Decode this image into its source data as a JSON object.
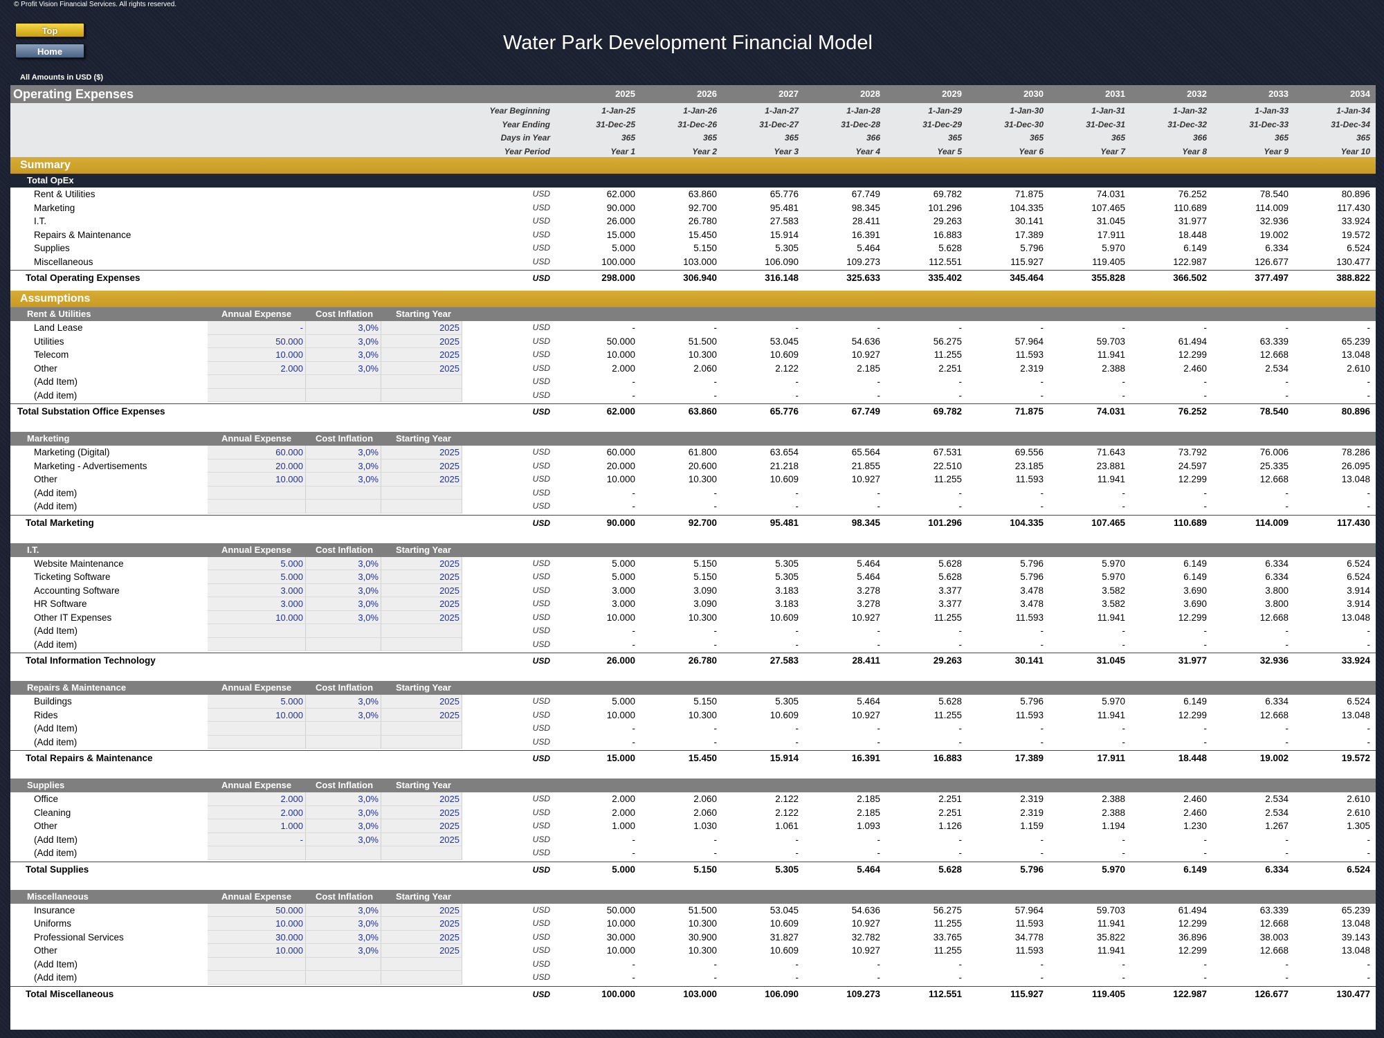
{
  "header": {
    "copyright": "© Profit Vision Financial Services. All rights reserved.",
    "top_button": "Top",
    "home_button": "Home",
    "title": "Water Park Development Financial Model",
    "amounts_note": "All Amounts in  USD ($)"
  },
  "table": {
    "title": "Operating Expenses",
    "years": [
      "2025",
      "2026",
      "2027",
      "2028",
      "2029",
      "2030",
      "2031",
      "2032",
      "2033",
      "2034"
    ],
    "meta": [
      {
        "label": "Year Beginning",
        "values": [
          "1-Jan-25",
          "1-Jan-26",
          "1-Jan-27",
          "1-Jan-28",
          "1-Jan-29",
          "1-Jan-30",
          "1-Jan-31",
          "1-Jan-32",
          "1-Jan-33",
          "1-Jan-34"
        ]
      },
      {
        "label": "Year Ending",
        "values": [
          "31-Dec-25",
          "31-Dec-26",
          "31-Dec-27",
          "31-Dec-28",
          "31-Dec-29",
          "31-Dec-30",
          "31-Dec-31",
          "31-Dec-32",
          "31-Dec-33",
          "31-Dec-34"
        ]
      },
      {
        "label": "Days in Year",
        "values": [
          "365",
          "365",
          "365",
          "366",
          "365",
          "365",
          "365",
          "366",
          "365",
          "365"
        ]
      },
      {
        "label": "Year Period",
        "values": [
          "Year 1",
          "Year 2",
          "Year 3",
          "Year 4",
          "Year 5",
          "Year 6",
          "Year 7",
          "Year 8",
          "Year 9",
          "Year 10"
        ]
      }
    ],
    "unit": "USD",
    "input_headers": [
      "Annual Expense",
      "Cost Inflation",
      "Starting Year"
    ]
  },
  "summary": {
    "section_title": "Summary",
    "subheader": "Total OpEx",
    "rows": [
      {
        "label": "Rent & Utilities",
        "values": [
          "62.000",
          "63.860",
          "65.776",
          "67.749",
          "69.782",
          "71.875",
          "74.031",
          "76.252",
          "78.540",
          "80.896"
        ]
      },
      {
        "label": "Marketing",
        "values": [
          "90.000",
          "92.700",
          "95.481",
          "98.345",
          "101.296",
          "104.335",
          "107.465",
          "110.689",
          "114.009",
          "117.430"
        ]
      },
      {
        "label": "I.T.",
        "values": [
          "26.000",
          "26.780",
          "27.583",
          "28.411",
          "29.263",
          "30.141",
          "31.045",
          "31.977",
          "32.936",
          "33.924"
        ]
      },
      {
        "label": "Repairs & Maintenance",
        "values": [
          "15.000",
          "15.450",
          "15.914",
          "16.391",
          "16.883",
          "17.389",
          "17.911",
          "18.448",
          "19.002",
          "19.572"
        ]
      },
      {
        "label": "Supplies",
        "values": [
          "5.000",
          "5.150",
          "5.305",
          "5.464",
          "5.628",
          "5.796",
          "5.970",
          "6.149",
          "6.334",
          "6.524"
        ]
      },
      {
        "label": "Miscellaneous",
        "values": [
          "100.000",
          "103.000",
          "106.090",
          "109.273",
          "112.551",
          "115.927",
          "119.405",
          "122.987",
          "126.677",
          "130.477"
        ]
      }
    ],
    "total": {
      "label": "Total Operating Expenses",
      "values": [
        "298.000",
        "306.940",
        "316.148",
        "325.633",
        "335.402",
        "345.464",
        "355.828",
        "366.502",
        "377.497",
        "388.822"
      ]
    }
  },
  "assumptions_title": "Assumptions",
  "groups": [
    {
      "title": "Rent & Utilities",
      "rows": [
        {
          "label": "Land Lease",
          "annual": "-",
          "inflation": "3,0%",
          "start": "2025",
          "values": [
            "-",
            "-",
            "-",
            "-",
            "-",
            "-",
            "-",
            "-",
            "-",
            "-"
          ]
        },
        {
          "label": "Utilities",
          "annual": "50.000",
          "inflation": "3,0%",
          "start": "2025",
          "values": [
            "50.000",
            "51.500",
            "53.045",
            "54.636",
            "56.275",
            "57.964",
            "59.703",
            "61.494",
            "63.339",
            "65.239"
          ]
        },
        {
          "label": "Telecom",
          "annual": "10.000",
          "inflation": "3,0%",
          "start": "2025",
          "values": [
            "10.000",
            "10.300",
            "10.609",
            "10.927",
            "11.255",
            "11.593",
            "11.941",
            "12.299",
            "12.668",
            "13.048"
          ]
        },
        {
          "label": "Other",
          "annual": "2.000",
          "inflation": "3,0%",
          "start": "2025",
          "values": [
            "2.000",
            "2.060",
            "2.122",
            "2.185",
            "2.251",
            "2.319",
            "2.388",
            "2.460",
            "2.534",
            "2.610"
          ]
        },
        {
          "label": "(Add Item)",
          "annual": "",
          "inflation": "",
          "start": "",
          "values": [
            "-",
            "-",
            "-",
            "-",
            "-",
            "-",
            "-",
            "-",
            "-",
            "-"
          ]
        },
        {
          "label": "(Add item)",
          "annual": "",
          "inflation": "",
          "start": "",
          "values": [
            "-",
            "-",
            "-",
            "-",
            "-",
            "-",
            "-",
            "-",
            "-",
            "-"
          ]
        }
      ],
      "total": {
        "label": "Total Substation Office Expenses",
        "values": [
          "62.000",
          "63.860",
          "65.776",
          "67.749",
          "69.782",
          "71.875",
          "74.031",
          "76.252",
          "78.540",
          "80.896"
        ]
      }
    },
    {
      "title": "Marketing",
      "rows": [
        {
          "label": "Marketing (Digital)",
          "annual": "60.000",
          "inflation": "3,0%",
          "start": "2025",
          "values": [
            "60.000",
            "61.800",
            "63.654",
            "65.564",
            "67.531",
            "69.556",
            "71.643",
            "73.792",
            "76.006",
            "78.286"
          ]
        },
        {
          "label": "Marketing - Advertisements",
          "annual": "20.000",
          "inflation": "3,0%",
          "start": "2025",
          "values": [
            "20.000",
            "20.600",
            "21.218",
            "21.855",
            "22.510",
            "23.185",
            "23.881",
            "24.597",
            "25.335",
            "26.095"
          ]
        },
        {
          "label": "Other",
          "annual": "10.000",
          "inflation": "3,0%",
          "start": "2025",
          "values": [
            "10.000",
            "10.300",
            "10.609",
            "10.927",
            "11.255",
            "11.593",
            "11.941",
            "12.299",
            "12.668",
            "13.048"
          ]
        },
        {
          "label": "(Add item)",
          "annual": "",
          "inflation": "",
          "start": "",
          "values": [
            "-",
            "-",
            "-",
            "-",
            "-",
            "-",
            "-",
            "-",
            "-",
            "-"
          ]
        },
        {
          "label": "(Add item)",
          "annual": "",
          "inflation": "",
          "start": "",
          "values": [
            "-",
            "-",
            "-",
            "-",
            "-",
            "-",
            "-",
            "-",
            "-",
            "-"
          ]
        }
      ],
      "total": {
        "label": "Total Marketing",
        "values": [
          "90.000",
          "92.700",
          "95.481",
          "98.345",
          "101.296",
          "104.335",
          "107.465",
          "110.689",
          "114.009",
          "117.430"
        ]
      }
    },
    {
      "title": "I.T.",
      "rows": [
        {
          "label": "Website Maintenance",
          "annual": "5.000",
          "inflation": "3,0%",
          "start": "2025",
          "values": [
            "5.000",
            "5.150",
            "5.305",
            "5.464",
            "5.628",
            "5.796",
            "5.970",
            "6.149",
            "6.334",
            "6.524"
          ]
        },
        {
          "label": "Ticketing Software",
          "annual": "5.000",
          "inflation": "3,0%",
          "start": "2025",
          "values": [
            "5.000",
            "5.150",
            "5.305",
            "5.464",
            "5.628",
            "5.796",
            "5.970",
            "6.149",
            "6.334",
            "6.524"
          ]
        },
        {
          "label": "Accounting Software",
          "annual": "3.000",
          "inflation": "3,0%",
          "start": "2025",
          "values": [
            "3.000",
            "3.090",
            "3.183",
            "3.278",
            "3.377",
            "3.478",
            "3.582",
            "3.690",
            "3.800",
            "3.914"
          ]
        },
        {
          "label": "HR Software",
          "annual": "3.000",
          "inflation": "3,0%",
          "start": "2025",
          "values": [
            "3.000",
            "3.090",
            "3.183",
            "3.278",
            "3.377",
            "3.478",
            "3.582",
            "3.690",
            "3.800",
            "3.914"
          ]
        },
        {
          "label": "Other IT Expenses",
          "annual": "10.000",
          "inflation": "3,0%",
          "start": "2025",
          "values": [
            "10.000",
            "10.300",
            "10.609",
            "10.927",
            "11.255",
            "11.593",
            "11.941",
            "12.299",
            "12.668",
            "13.048"
          ]
        },
        {
          "label": "(Add Item)",
          "annual": "",
          "inflation": "",
          "start": "",
          "values": [
            "-",
            "-",
            "-",
            "-",
            "-",
            "-",
            "-",
            "-",
            "-",
            "-"
          ]
        },
        {
          "label": "(Add item)",
          "annual": "",
          "inflation": "",
          "start": "",
          "values": [
            "-",
            "-",
            "-",
            "-",
            "-",
            "-",
            "-",
            "-",
            "-",
            "-"
          ]
        }
      ],
      "total": {
        "label": "Total Information Technology",
        "values": [
          "26.000",
          "26.780",
          "27.583",
          "28.411",
          "29.263",
          "30.141",
          "31.045",
          "31.977",
          "32.936",
          "33.924"
        ]
      }
    },
    {
      "title": "Repairs & Maintenance",
      "rows": [
        {
          "label": "Buildings",
          "annual": "5.000",
          "inflation": "3,0%",
          "start": "2025",
          "values": [
            "5.000",
            "5.150",
            "5.305",
            "5.464",
            "5.628",
            "5.796",
            "5.970",
            "6.149",
            "6.334",
            "6.524"
          ]
        },
        {
          "label": "Rides",
          "annual": "10.000",
          "inflation": "3,0%",
          "start": "2025",
          "values": [
            "10.000",
            "10.300",
            "10.609",
            "10.927",
            "11.255",
            "11.593",
            "11.941",
            "12.299",
            "12.668",
            "13.048"
          ]
        },
        {
          "label": "(Add Item)",
          "annual": "",
          "inflation": "",
          "start": "",
          "values": [
            "-",
            "-",
            "-",
            "-",
            "-",
            "-",
            "-",
            "-",
            "-",
            "-"
          ]
        },
        {
          "label": "(Add item)",
          "annual": "",
          "inflation": "",
          "start": "",
          "values": [
            "-",
            "-",
            "-",
            "-",
            "-",
            "-",
            "-",
            "-",
            "-",
            "-"
          ]
        }
      ],
      "total": {
        "label": "Total Repairs & Maintenance",
        "values": [
          "15.000",
          "15.450",
          "15.914",
          "16.391",
          "16.883",
          "17.389",
          "17.911",
          "18.448",
          "19.002",
          "19.572"
        ]
      }
    },
    {
      "title": "Supplies",
      "rows": [
        {
          "label": "Office",
          "annual": "2.000",
          "inflation": "3,0%",
          "start": "2025",
          "values": [
            "2.000",
            "2.060",
            "2.122",
            "2.185",
            "2.251",
            "2.319",
            "2.388",
            "2.460",
            "2.534",
            "2.610"
          ]
        },
        {
          "label": "Cleaning",
          "annual": "2.000",
          "inflation": "3,0%",
          "start": "2025",
          "values": [
            "2.000",
            "2.060",
            "2.122",
            "2.185",
            "2.251",
            "2.319",
            "2.388",
            "2.460",
            "2.534",
            "2.610"
          ]
        },
        {
          "label": "Other",
          "annual": "1.000",
          "inflation": "3,0%",
          "start": "2025",
          "values": [
            "1.000",
            "1.030",
            "1.061",
            "1.093",
            "1.126",
            "1.159",
            "1.194",
            "1.230",
            "1.267",
            "1.305"
          ]
        },
        {
          "label": "(Add Item)",
          "annual": "-",
          "inflation": "3,0%",
          "start": "2025",
          "values": [
            "-",
            "-",
            "-",
            "-",
            "-",
            "-",
            "-",
            "-",
            "-",
            "-"
          ]
        },
        {
          "label": "(Add item)",
          "annual": "",
          "inflation": "",
          "start": "",
          "values": [
            "-",
            "-",
            "-",
            "-",
            "-",
            "-",
            "-",
            "-",
            "-",
            "-"
          ]
        }
      ],
      "total": {
        "label": "Total Supplies",
        "values": [
          "5.000",
          "5.150",
          "5.305",
          "5.464",
          "5.628",
          "5.796",
          "5.970",
          "6.149",
          "6.334",
          "6.524"
        ]
      }
    },
    {
      "title": "Miscellaneous",
      "rows": [
        {
          "label": "Insurance",
          "annual": "50.000",
          "inflation": "3,0%",
          "start": "2025",
          "values": [
            "50.000",
            "51.500",
            "53.045",
            "54.636",
            "56.275",
            "57.964",
            "59.703",
            "61.494",
            "63.339",
            "65.239"
          ]
        },
        {
          "label": "Uniforms",
          "annual": "10.000",
          "inflation": "3,0%",
          "start": "2025",
          "values": [
            "10.000",
            "10.300",
            "10.609",
            "10.927",
            "11.255",
            "11.593",
            "11.941",
            "12.299",
            "12.668",
            "13.048"
          ]
        },
        {
          "label": "Professional Services",
          "annual": "30.000",
          "inflation": "3,0%",
          "start": "2025",
          "values": [
            "30.000",
            "30.900",
            "31.827",
            "32.782",
            "33.765",
            "34.778",
            "35.822",
            "36.896",
            "38.003",
            "39.143"
          ]
        },
        {
          "label": "Other",
          "annual": "10.000",
          "inflation": "3,0%",
          "start": "2025",
          "values": [
            "10.000",
            "10.300",
            "10.609",
            "10.927",
            "11.255",
            "11.593",
            "11.941",
            "12.299",
            "12.668",
            "13.048"
          ]
        },
        {
          "label": "(Add Item)",
          "annual": "",
          "inflation": "",
          "start": "",
          "values": [
            "-",
            "-",
            "-",
            "-",
            "-",
            "-",
            "-",
            "-",
            "-",
            "-"
          ]
        },
        {
          "label": "(Add item)",
          "annual": "",
          "inflation": "",
          "start": "",
          "values": [
            "-",
            "-",
            "-",
            "-",
            "-",
            "-",
            "-",
            "-",
            "-",
            "-"
          ]
        }
      ],
      "total": {
        "label": "Total Miscellaneous",
        "values": [
          "100.000",
          "103.000",
          "106.090",
          "109.273",
          "112.551",
          "115.927",
          "119.405",
          "122.987",
          "126.677",
          "130.477"
        ]
      }
    }
  ]
}
